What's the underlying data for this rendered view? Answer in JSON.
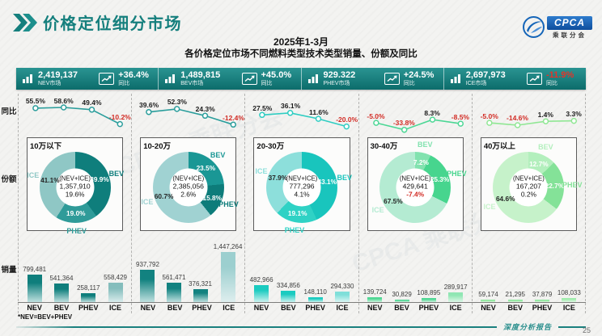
{
  "page": {
    "title": "价格定位细分市场",
    "subtitle1": "2025年1-3月",
    "subtitle2": "各价格定位市场不同燃料类型技术类型销量、份额及同比",
    "footnote": "*NEV=BEV+PHEV",
    "footer_label": "深度分析报告",
    "page_number": "25",
    "logo_text": "CPCA",
    "logo_subtext": "乘联分会",
    "watermark": "CPCA 乘联分会",
    "accent_color": "#157f7d",
    "negative_color": "#d22b24"
  },
  "row_labels": {
    "yoy": "同比",
    "share": "份额",
    "sales": "销量"
  },
  "stat_cards": [
    {
      "value": "2,419,137",
      "market": "NEV市场",
      "yoy": "+36.4%",
      "yoy_label": "同比",
      "yoy_negative": false
    },
    {
      "value": "1,489,815",
      "market": "BEV市场",
      "yoy": "+45.0%",
      "yoy_label": "同比",
      "yoy_negative": false
    },
    {
      "value": "929.322",
      "market": "PHEV市场",
      "yoy": "+24.5%",
      "yoy_label": "同比",
      "yoy_negative": false
    },
    {
      "value": "2,697,973",
      "market": "ICE市场",
      "yoy": "-11.9%",
      "yoy_label": "同比",
      "yoy_negative": true
    }
  ],
  "chart_data": {
    "type": "dashboard",
    "fuel_categories": [
      "NEV",
      "BEV",
      "PHEV",
      "ICE"
    ],
    "bar_scale_max": 1447264,
    "segments": [
      {
        "name": "10万以下",
        "colors": {
          "line": "#2b9e9c",
          "bev": "#0f7e7c",
          "phev": "#2f9b99",
          "ice": "#8fc7c5",
          "bar_top": "#0f7e7c",
          "bar_bottom": "#bfe0df",
          "ice_bar_top": "#84bdbc",
          "ice_bar_bottom": "#d9ecec"
        },
        "yoy_line": {
          "categories": [
            "NEV",
            "BEV",
            "PHEV",
            "ICE"
          ],
          "values": [
            55.5,
            58.6,
            49.4,
            -10.2
          ],
          "labels": [
            "55.5%",
            "58.6%",
            "49.4%",
            "-10.2%"
          ]
        },
        "donut": {
          "center_line1": "(NEV+ICE)",
          "center_total": "1,357,910",
          "center_growth": "19.6%",
          "growth_negative": false,
          "slices": [
            {
              "name": "BEV",
              "pct": 39.9,
              "label": "39.9%"
            },
            {
              "name": "PHEV",
              "pct": 19.0,
              "label": "19.0%"
            },
            {
              "name": "ICE",
              "pct": 41.1,
              "label": "41.1%"
            }
          ]
        },
        "bars": [
          {
            "category": "NEV",
            "value": 799481,
            "label": "799,481"
          },
          {
            "category": "BEV",
            "value": 541364,
            "label": "541,364"
          },
          {
            "category": "PHEV",
            "value": 258117,
            "label": "258,117"
          },
          {
            "category": "ICE",
            "value": 558429,
            "label": "558,429"
          }
        ]
      },
      {
        "name": "10-20万",
        "colors": {
          "line": "#2b9e9c",
          "bev": "#1a9795",
          "phev": "#0d7c7a",
          "ice": "#a0d2d2",
          "bar_top": "#128280",
          "bar_bottom": "#bfe0df",
          "ice_bar_top": "#9ccfcf",
          "ice_bar_bottom": "#deeeee"
        },
        "yoy_line": {
          "categories": [
            "NEV",
            "BEV",
            "PHEV",
            "ICE"
          ],
          "values": [
            39.6,
            52.3,
            24.3,
            -12.4
          ],
          "labels": [
            "39.6%",
            "52.3%",
            "24.3%",
            "-12.4%"
          ]
        },
        "donut": {
          "center_line1": "(NEV+ICE)",
          "center_total": "2,385,056",
          "center_growth": "2.6%",
          "growth_negative": false,
          "slices": [
            {
              "name": "BEV",
              "pct": 23.5,
              "label": "23.5%"
            },
            {
              "name": "PHEV",
              "pct": 15.8,
              "label": "15.8%"
            },
            {
              "name": "ICE",
              "pct": 60.7,
              "label": "60.7%"
            }
          ]
        },
        "bars": [
          {
            "category": "NEV",
            "value": 937792,
            "label": "937,792"
          },
          {
            "category": "BEV",
            "value": 561471,
            "label": "561,471"
          },
          {
            "category": "PHEV",
            "value": 376321,
            "label": "376,321"
          },
          {
            "category": "ICE",
            "value": 1447264,
            "label": "1,447,264"
          }
        ]
      },
      {
        "name": "20-30万",
        "colors": {
          "line": "#2fcdc2",
          "bev": "#19c5bd",
          "phev": "#2fd2c5",
          "ice": "#8ddfdb",
          "bar_top": "#1bcbc0",
          "bar_bottom": "#cbf2ef",
          "ice_bar_top": "#7fdfd9",
          "ice_bar_bottom": "#daf6f4"
        },
        "yoy_line": {
          "categories": [
            "NEV",
            "BEV",
            "PHEV",
            "ICE"
          ],
          "values": [
            27.5,
            36.1,
            11.6,
            -20.0
          ],
          "labels": [
            "27.5%",
            "36.1%",
            "11.6%",
            "-20.0%"
          ]
        },
        "donut": {
          "center_line1": "(NEV+ICE)",
          "center_total": "777,296",
          "center_growth": "4.1%",
          "growth_negative": false,
          "slices": [
            {
              "name": "BEV",
              "pct": 43.1,
              "label": "43.1%"
            },
            {
              "name": "PHEV",
              "pct": 19.1,
              "label": "19.1%"
            },
            {
              "name": "ICE",
              "pct": 37.9,
              "label": "37.9%"
            }
          ]
        },
        "bars": [
          {
            "category": "NEV",
            "value": 482966,
            "label": "482,966"
          },
          {
            "category": "BEV",
            "value": 334856,
            "label": "334,856"
          },
          {
            "category": "PHEV",
            "value": 148110,
            "label": "148,110"
          },
          {
            "category": "ICE",
            "value": 294330,
            "label": "294,330"
          }
        ]
      },
      {
        "name": "30-40万",
        "colors": {
          "line": "#4cd795",
          "bev": "#82e2af",
          "phev": "#47d58e",
          "ice": "#b4ebd2",
          "bar_top": "#4fd794",
          "bar_bottom": "#cef3de",
          "ice_bar_top": "#90e6b3",
          "ice_bar_bottom": "#ddf7e8"
        },
        "yoy_line": {
          "categories": [
            "NEV",
            "BEV",
            "PHEV",
            "ICE"
          ],
          "values": [
            -5.0,
            -33.8,
            8.3,
            -8.5
          ],
          "labels": [
            "-5.0%",
            "-33.8%",
            "8.3%",
            "-8.5%"
          ]
        },
        "donut": {
          "center_line1": "(NEV+ICE)",
          "center_total": "429,641",
          "center_growth": "-7.4%",
          "growth_negative": true,
          "slices": [
            {
              "name": "BEV",
              "pct": 7.2,
              "label": "7.2%"
            },
            {
              "name": "PHEV",
              "pct": 25.3,
              "label": "25.3%"
            },
            {
              "name": "ICE",
              "pct": 67.5,
              "label": "67.5%"
            }
          ]
        },
        "bars": [
          {
            "category": "NEV",
            "value": 139724,
            "label": "139,724"
          },
          {
            "category": "BEV",
            "value": 30829,
            "label": "30,829"
          },
          {
            "category": "PHEV",
            "value": 108895,
            "label": "108,895"
          },
          {
            "category": "ICE",
            "value": 289917,
            "label": "289,917"
          }
        ]
      },
      {
        "name": "40万以上",
        "colors": {
          "line": "#90e794",
          "bev": "#b3efbd",
          "phev": "#84e298",
          "ice": "#c6f2ca",
          "bar_top": "#8ce79b",
          "bar_bottom": "#daf7dd",
          "ice_bar_top": "#9fecac",
          "ice_bar_bottom": "#e3f9e6"
        },
        "yoy_line": {
          "categories": [
            "NEV",
            "BEV",
            "PHEV",
            "ICE"
          ],
          "values": [
            -5.0,
            -14.6,
            1.4,
            3.3
          ],
          "labels": [
            "-5.0%",
            "-14.6%",
            "1.4%",
            "3.3%"
          ]
        },
        "donut": {
          "center_line1": "(NEV+ICE)",
          "center_total": "167,207",
          "center_growth": "0.2%",
          "growth_negative": false,
          "slices": [
            {
              "name": "BEV",
              "pct": 12.7,
              "label": "12.7%"
            },
            {
              "name": "PHEV",
              "pct": 22.7,
              "label": "22.7%"
            },
            {
              "name": "ICE",
              "pct": 64.6,
              "label": "64.6%"
            }
          ]
        },
        "bars": [
          {
            "category": "NEV",
            "value": 59174,
            "label": "59,174"
          },
          {
            "category": "BEV",
            "value": 21295,
            "label": "21,295"
          },
          {
            "category": "PHEV",
            "value": 37879,
            "label": "37,879"
          },
          {
            "category": "ICE",
            "value": 108033,
            "label": "108,033"
          }
        ]
      }
    ]
  }
}
